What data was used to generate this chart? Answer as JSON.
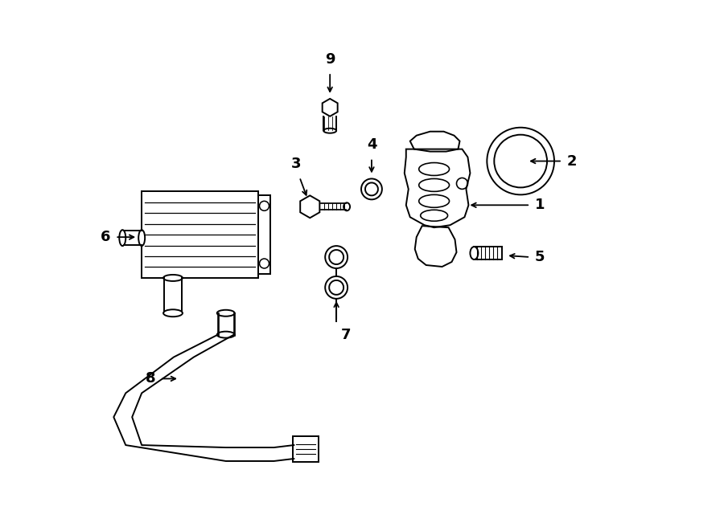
{
  "bg_color": "#ffffff",
  "line_color": "#000000",
  "figure_width": 9.0,
  "figure_height": 6.61,
  "dpi": 100
}
